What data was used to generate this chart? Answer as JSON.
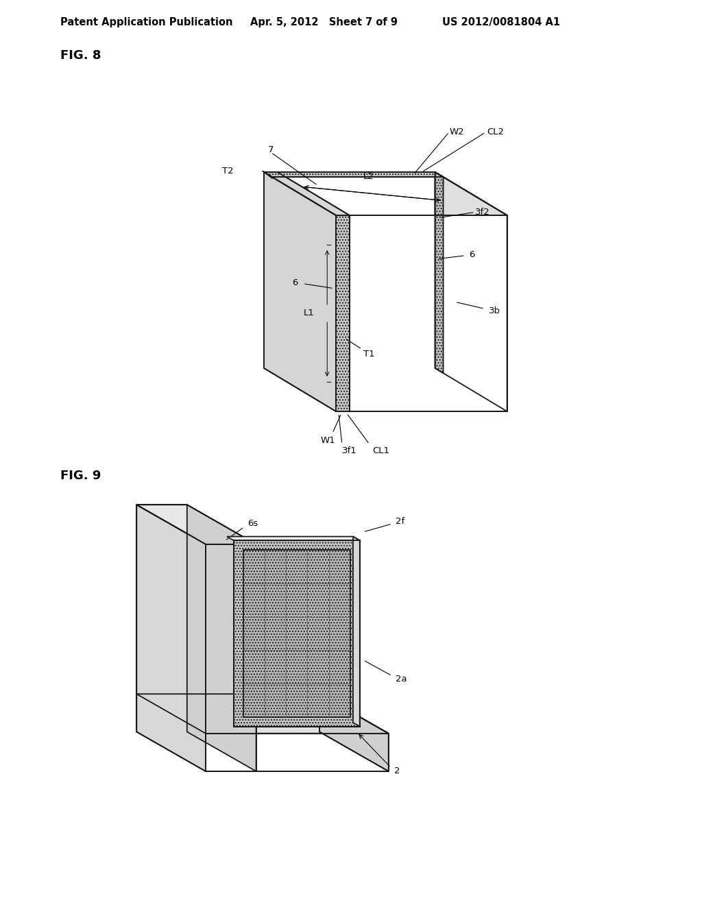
{
  "bg_color": "#ffffff",
  "header_left": "Patent Application Publication",
  "header_mid": "Apr. 5, 2012   Sheet 7 of 9",
  "header_right": "US 2012/0081804 A1",
  "fig8_label": "FIG. 8",
  "fig9_label": "FIG. 9",
  "line_color": "#1a1a1a",
  "font_size_header": 10.5,
  "font_size_fig": 13,
  "font_size_label": 9.5
}
